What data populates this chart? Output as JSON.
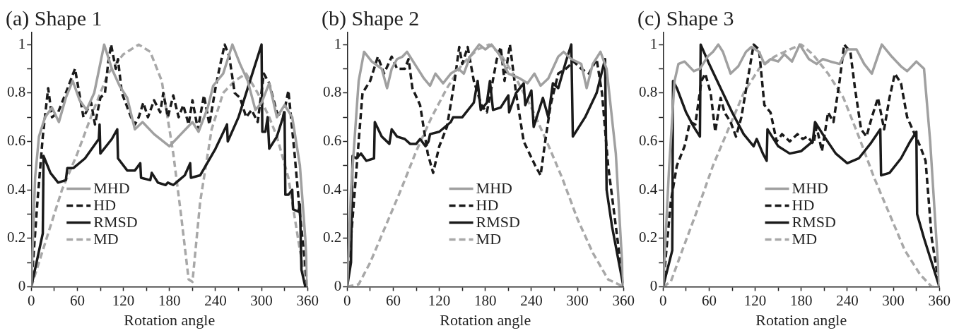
{
  "chart_data": [
    {
      "type": "line",
      "title": "(a) Shape 1",
      "xlabel": "Rotation angle",
      "xlim": [
        0,
        360
      ],
      "xticks": [
        0,
        {
          "value": 30,
          "label": null
        },
        60,
        {
          "value": 90,
          "label": null
        },
        120,
        {
          "value": 150,
          "label": null
        },
        180,
        {
          "value": 210,
          "label": null
        },
        240,
        {
          "value": 270,
          "label": null
        },
        300,
        {
          "value": 330,
          "label": null
        },
        360
      ],
      "ylim": [
        0,
        1.05
      ],
      "yticks": [
        0,
        {
          "value": 0.1,
          "label": null
        },
        0.2,
        {
          "value": 0.3,
          "label": null
        },
        0.4,
        {
          "value": 0.5,
          "label": null
        },
        0.6,
        {
          "value": 0.7,
          "label": null
        },
        0.8,
        {
          "value": 0.9,
          "label": null
        },
        1
      ],
      "legend": "bottom left",
      "marker": "none",
      "series": [
        {
          "name": "MHD",
          "color": "#a0a0a0",
          "line_style": "solid",
          "x": [
            0,
            5,
            10,
            18,
            27,
            36,
            45,
            54,
            63,
            72,
            82,
            95,
            105,
            115,
            125,
            135,
            145,
            160,
            180,
            195,
            210,
            218,
            230,
            237,
            250,
            262,
            272,
            282,
            292,
            300,
            310,
            320,
            330,
            340,
            350,
            357,
            360
          ],
          "values": [
            0,
            0.45,
            0.62,
            0.7,
            0.74,
            0.68,
            0.78,
            0.85,
            0.77,
            0.73,
            0.8,
            1.0,
            0.9,
            0.83,
            0.78,
            0.65,
            0.68,
            0.63,
            0.58,
            0.63,
            0.68,
            0.64,
            0.74,
            0.83,
            0.88,
            1.0,
            0.92,
            0.85,
            0.73,
            0.76,
            0.84,
            0.7,
            0.75,
            0.7,
            0.5,
            0.2,
            0
          ]
        },
        {
          "name": "HD",
          "color": "#1a1a1a",
          "line_style": "dashed",
          "x": [
            0,
            8,
            15,
            22,
            27,
            35,
            45,
            57,
            68,
            78,
            83,
            90,
            96,
            100,
            104,
            110,
            113,
            118,
            130,
            135,
            140,
            146,
            152,
            160,
            168,
            172,
            178,
            185,
            192,
            198,
            205,
            210,
            217,
            225,
            232,
            240,
            245,
            252,
            258,
            265,
            272,
            280,
            287,
            295,
            303,
            310,
            320,
            328,
            335,
            343,
            350,
            360
          ],
          "values": [
            0,
            0.35,
            0.62,
            0.82,
            0.7,
            0.72,
            0.8,
            0.9,
            0.7,
            0.76,
            0.67,
            0.78,
            0.8,
            0.92,
            1.0,
            0.9,
            0.94,
            0.8,
            0.7,
            0.67,
            0.7,
            0.76,
            0.7,
            0.77,
            0.72,
            0.8,
            0.7,
            0.79,
            0.7,
            0.75,
            0.67,
            0.77,
            0.65,
            0.79,
            0.67,
            0.82,
            0.9,
            1.0,
            0.95,
            0.8,
            0.78,
            0.7,
            0.73,
            0.68,
            0.88,
            0.84,
            0.72,
            0.7,
            0.81,
            0.55,
            0.3,
            0
          ]
        },
        {
          "name": "RMSD",
          "color": "#1a1a1a",
          "line_style": "solid",
          "x": [
            0,
            15,
            16,
            25,
            35,
            45,
            47,
            55,
            70,
            88,
            89,
            90,
            105,
            112,
            113,
            125,
            135,
            142,
            143,
            155,
            157,
            165,
            175,
            178,
            185,
            200,
            207,
            208,
            220,
            240,
            255,
            256,
            270,
            285,
            300,
            301,
            305,
            308,
            310,
            320,
            330,
            331,
            335,
            340,
            341,
            348,
            350,
            352,
            357
          ],
          "values": [
            0,
            0.22,
            0.54,
            0.47,
            0.43,
            0.44,
            0.49,
            0.49,
            0.53,
            0.61,
            0.67,
            0.55,
            0.61,
            0.65,
            0.53,
            0.48,
            0.48,
            0.51,
            0.45,
            0.44,
            0.47,
            0.43,
            0.42,
            0.43,
            0.42,
            0.46,
            0.51,
            0.45,
            0.46,
            0.57,
            0.67,
            0.6,
            0.7,
            0.85,
            1.0,
            0.64,
            0.64,
            0.7,
            0.57,
            0.62,
            0.72,
            0.38,
            0.38,
            0.4,
            0.32,
            0.31,
            0.34,
            0.07,
            0
          ]
        },
        {
          "name": "MD",
          "color": "#a8a8a8",
          "line_style": "dashed",
          "x": [
            0,
            20,
            40,
            60,
            80,
            100,
            120,
            140,
            155,
            170,
            185,
            195,
            205,
            210,
            220,
            235,
            250,
            265,
            280,
            295,
            310,
            320,
            335,
            350,
            360
          ],
          "values": [
            0,
            0.2,
            0.4,
            0.55,
            0.72,
            0.88,
            0.96,
            1.0,
            0.97,
            0.85,
            0.55,
            0.3,
            0.03,
            0.02,
            0.35,
            0.65,
            0.8,
            0.85,
            0.88,
            0.8,
            0.7,
            0.62,
            0.45,
            0.15,
            0
          ]
        }
      ]
    },
    {
      "type": "line",
      "title": "(b) Shape 2",
      "xlabel": "Rotation angle",
      "xlim": [
        0,
        360
      ],
      "xticks": [
        0,
        {
          "value": 30,
          "label": null
        },
        60,
        {
          "value": 90,
          "label": null
        },
        120,
        {
          "value": 150,
          "label": null
        },
        180,
        {
          "value": 210,
          "label": null
        },
        240,
        {
          "value": 270,
          "label": null
        },
        300,
        {
          "value": 330,
          "label": null
        },
        360
      ],
      "ylim": [
        0,
        1.05
      ],
      "yticks": [
        0,
        {
          "value": 0.1,
          "label": null
        },
        0.2,
        {
          "value": 0.3,
          "label": null
        },
        0.4,
        {
          "value": 0.5,
          "label": null
        },
        0.6,
        {
          "value": 0.7,
          "label": null
        },
        0.8,
        {
          "value": 0.9,
          "label": null
        },
        1
      ],
      "legend": "bottom",
      "marker": "none",
      "series": [
        {
          "name": "MHD",
          "color": "#a0a0a0",
          "line_style": "solid",
          "x": [
            0,
            5,
            15,
            22,
            32,
            45,
            52,
            58,
            65,
            72,
            78,
            88,
            100,
            108,
            115,
            125,
            135,
            145,
            152,
            160,
            172,
            180,
            188,
            198,
            210,
            225,
            235,
            244,
            252,
            262,
            275,
            282,
            292,
            305,
            312,
            320,
            330,
            338,
            350,
            360
          ],
          "values": [
            0,
            0.4,
            0.85,
            0.97,
            0.93,
            0.9,
            0.82,
            0.9,
            0.94,
            0.95,
            0.97,
            0.92,
            0.86,
            0.83,
            0.88,
            0.84,
            0.88,
            0.9,
            0.88,
            0.95,
            1.0,
            0.98,
            1.0,
            0.96,
            0.88,
            0.86,
            0.84,
            0.88,
            0.83,
            0.86,
            0.95,
            0.97,
            0.94,
            0.92,
            0.82,
            0.92,
            0.97,
            0.9,
            0.55,
            0
          ]
        },
        {
          "name": "HD",
          "color": "#1a1a1a",
          "line_style": "dashed",
          "x": [
            0,
            10,
            20,
            30,
            40,
            48,
            58,
            65,
            75,
            80,
            85,
            95,
            105,
            112,
            120,
            130,
            140,
            146,
            150,
            157,
            165,
            175,
            182,
            195,
            200,
            205,
            212,
            220,
            230,
            245,
            252,
            258,
            265,
            275,
            285,
            295,
            305,
            315,
            325,
            332,
            340,
            360
          ],
          "values": [
            0,
            0.4,
            0.8,
            0.85,
            0.95,
            0.88,
            0.95,
            0.9,
            0.9,
            0.94,
            0.82,
            0.75,
            0.55,
            0.47,
            0.58,
            0.66,
            0.85,
            0.99,
            0.92,
            0.99,
            0.85,
            0.75,
            0.72,
            0.94,
            0.99,
            0.85,
            1.0,
            0.8,
            0.6,
            0.5,
            0.46,
            0.6,
            0.75,
            0.88,
            0.9,
            0.93,
            0.9,
            0.88,
            0.94,
            0.8,
            0.5,
            0
          ]
        },
        {
          "name": "RMSD",
          "color": "#1a1a1a",
          "line_style": "solid",
          "x": [
            0,
            5,
            7,
            12,
            18,
            25,
            35,
            36,
            45,
            55,
            58,
            65,
            75,
            82,
            90,
            95,
            102,
            106,
            108,
            120,
            135,
            138,
            150,
            165,
            170,
            174,
            182,
            186,
            190,
            200,
            210,
            211,
            220,
            230,
            232,
            240,
            243,
            255,
            262,
            268,
            275,
            285,
            292,
            294,
            310,
            325,
            336,
            338,
            345,
            360
          ],
          "values": [
            0,
            0.1,
            0.54,
            0.53,
            0.55,
            0.52,
            0.53,
            0.68,
            0.62,
            0.59,
            0.65,
            0.62,
            0.61,
            0.59,
            0.59,
            0.61,
            0.58,
            0.6,
            0.63,
            0.64,
            0.68,
            0.7,
            0.7,
            0.76,
            0.85,
            0.73,
            0.76,
            0.85,
            0.73,
            0.74,
            0.79,
            0.72,
            0.8,
            0.84,
            0.75,
            0.81,
            0.66,
            0.78,
            0.7,
            0.84,
            0.82,
            0.93,
            1.0,
            0.62,
            0.7,
            0.8,
            0.94,
            0.4,
            0.25,
            0
          ]
        },
        {
          "name": "MD",
          "color": "#a8a8a8",
          "line_style": "dashed",
          "x": [
            0,
            15,
            30,
            50,
            70,
            90,
            110,
            130,
            150,
            170,
            185,
            200,
            220,
            240,
            260,
            280,
            300,
            320,
            340,
            360
          ],
          "values": [
            0,
            0.01,
            0.1,
            0.25,
            0.4,
            0.56,
            0.7,
            0.82,
            0.92,
            0.98,
            1.0,
            0.96,
            0.86,
            0.74,
            0.6,
            0.45,
            0.28,
            0.14,
            0.03,
            0
          ]
        }
      ]
    },
    {
      "type": "line",
      "title": "(c) Shape 3",
      "xlabel": "Rotation angle",
      "xlim": [
        0,
        360
      ],
      "xticks": [
        0,
        {
          "value": 30,
          "label": null
        },
        60,
        {
          "value": 90,
          "label": null
        },
        120,
        {
          "value": 150,
          "label": null
        },
        180,
        {
          "value": 210,
          "label": null
        },
        240,
        {
          "value": 270,
          "label": null
        },
        300,
        {
          "value": 330,
          "label": null
        },
        360
      ],
      "ylim": [
        0,
        1.05
      ],
      "yticks": [
        0,
        {
          "value": 0.1,
          "label": null
        },
        0.2,
        {
          "value": 0.3,
          "label": null
        },
        0.4,
        {
          "value": 0.5,
          "label": null
        },
        0.6,
        {
          "value": 0.7,
          "label": null
        },
        0.8,
        {
          "value": 0.9,
          "label": null
        },
        1
      ],
      "legend": "bottom",
      "marker": "none",
      "series": [
        {
          "name": "MHD",
          "color": "#a0a0a0",
          "line_style": "solid",
          "x": [
            0,
            8,
            15,
            20,
            28,
            40,
            48,
            58,
            65,
            72,
            78,
            88,
            98,
            108,
            115,
            125,
            132,
            140,
            150,
            158,
            168,
            178,
            190,
            200,
            208,
            218,
            230,
            240,
            252,
            262,
            272,
            285,
            298,
            310,
            318,
            330,
            340,
            348,
            360
          ],
          "values": [
            0,
            0.5,
            0.85,
            0.92,
            0.93,
            0.89,
            0.9,
            0.95,
            0.97,
            1.0,
            0.97,
            0.88,
            0.91,
            0.97,
            0.99,
            0.97,
            0.92,
            0.94,
            0.93,
            0.96,
            0.93,
            1.0,
            0.94,
            0.92,
            0.94,
            0.93,
            0.92,
            0.98,
            0.98,
            0.92,
            0.88,
            1.0,
            0.95,
            0.91,
            0.89,
            0.93,
            0.9,
            0.6,
            0
          ]
        },
        {
          "name": "HD",
          "color": "#1a1a1a",
          "line_style": "dashed",
          "x": [
            0,
            10,
            18,
            28,
            35,
            42,
            50,
            55,
            62,
            68,
            75,
            80,
            88,
            95,
            102,
            110,
            118,
            125,
            132,
            140,
            148,
            155,
            165,
            175,
            182,
            188,
            196,
            200,
            207,
            215,
            222,
            230,
            236,
            244,
            250,
            258,
            265,
            272,
            280,
            288,
            295,
            302,
            310,
            318,
            325,
            335,
            342,
            350,
            360
          ],
          "values": [
            0,
            0.35,
            0.5,
            0.58,
            0.68,
            0.67,
            0.85,
            0.88,
            0.8,
            0.64,
            0.78,
            0.72,
            0.68,
            0.62,
            0.7,
            0.85,
            1.0,
            0.98,
            0.75,
            0.72,
            0.6,
            0.63,
            0.6,
            0.63,
            0.61,
            0.62,
            0.59,
            0.66,
            0.56,
            0.72,
            0.68,
            0.85,
            1.0,
            0.97,
            0.82,
            0.65,
            0.62,
            0.7,
            0.78,
            0.65,
            0.78,
            0.88,
            0.84,
            0.7,
            0.65,
            0.58,
            0.52,
            0.2,
            0
          ]
        },
        {
          "name": "RMSD",
          "color": "#1a1a1a",
          "line_style": "solid",
          "x": [
            0,
            12,
            13,
            18,
            30,
            40,
            48,
            49,
            60,
            75,
            90,
            105,
            118,
            122,
            130,
            135,
            136,
            140,
            150,
            165,
            180,
            195,
            198,
            210,
            225,
            240,
            255,
            270,
            283,
            284,
            295,
            310,
            322,
            330,
            331,
            340,
            360
          ],
          "values": [
            0,
            0.15,
            0.85,
            0.82,
            0.72,
            0.66,
            0.62,
            1.0,
            0.92,
            0.82,
            0.72,
            0.63,
            0.58,
            0.61,
            0.55,
            0.52,
            0.65,
            0.63,
            0.58,
            0.55,
            0.56,
            0.6,
            0.68,
            0.62,
            0.55,
            0.51,
            0.53,
            0.59,
            0.65,
            0.46,
            0.47,
            0.53,
            0.6,
            0.64,
            0.3,
            0.2,
            0
          ]
        },
        {
          "name": "MD",
          "color": "#a8a8a8",
          "line_style": "dashed",
          "x": [
            0,
            10,
            25,
            45,
            65,
            85,
            105,
            125,
            145,
            165,
            180,
            195,
            215,
            235,
            255,
            275,
            295,
            315,
            335,
            350,
            360
          ],
          "values": [
            0,
            0.02,
            0.15,
            0.32,
            0.5,
            0.65,
            0.8,
            0.9,
            0.95,
            0.98,
            1.0,
            0.96,
            0.88,
            0.78,
            0.62,
            0.45,
            0.3,
            0.15,
            0.05,
            0,
            0
          ]
        }
      ]
    }
  ]
}
